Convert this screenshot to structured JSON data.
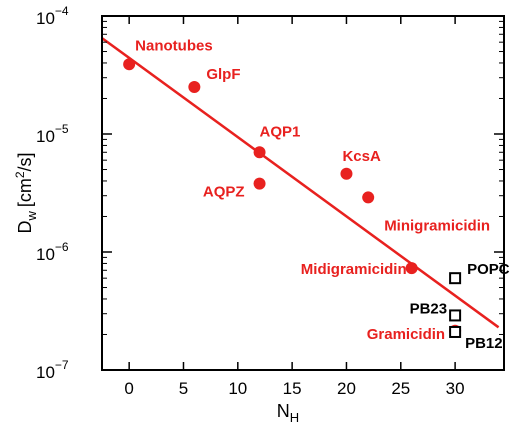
{
  "chart_data": {
    "type": "scatter",
    "xlabel": "N",
    "xlabel_sub": "H",
    "ylabel": "D",
    "ylabel_sub": "w",
    "ylabel_units": "[cm",
    "ylabel_units_sup": "2",
    "ylabel_units_tail": "/s]",
    "xlim": [
      -2.5,
      34.5
    ],
    "ylim": [
      1e-07,
      0.0001
    ],
    "yscale": "log",
    "grid": false,
    "x_ticks": [
      0,
      5,
      10,
      15,
      20,
      25,
      30
    ],
    "x_tick_labels": [
      "0",
      "5",
      "10",
      "15",
      "20",
      "25",
      "30"
    ],
    "y_ticks": [
      {
        "value": 0.0001,
        "base": "10",
        "exp": "−4"
      },
      {
        "value": 1e-05,
        "base": "10",
        "exp": "−5"
      },
      {
        "value": 1e-06,
        "base": "10",
        "exp": "−6"
      },
      {
        "value": 1e-07,
        "base": "10",
        "exp": "−7"
      }
    ],
    "colors": {
      "red": "#e8211f",
      "black": "#000000"
    },
    "fit_line": {
      "color": "#e8211f",
      "points": [
        [
          -2.5,
          6.5e-05
        ],
        [
          34,
          2.3e-07
        ]
      ]
    },
    "series": [
      {
        "marker": "filled-circle",
        "color": "#e8211f",
        "points": [
          {
            "label": "Nanotubes",
            "x": 0,
            "y": 3.9e-05
          },
          {
            "label": "GlpF",
            "x": 6,
            "y": 2.5e-05
          },
          {
            "label": "AQP1",
            "x": 12,
            "y": 7e-06
          },
          {
            "label": "AQPZ",
            "x": 12,
            "y": 3.8e-06
          },
          {
            "label": "KcsA",
            "x": 20,
            "y": 4.6e-06
          },
          {
            "label": "Minigramicidin",
            "x": 22,
            "y": 2.9e-06
          },
          {
            "label": "Midigramicidin",
            "x": 26,
            "y": 7.3e-07
          },
          {
            "label": "Gramicidin",
            "x": 30,
            "y": 2.15e-07
          }
        ]
      },
      {
        "marker": "open-square",
        "color": "#000000",
        "points": [
          {
            "label": "POPC",
            "x": 30,
            "y": 6e-07
          },
          {
            "label": "PB23",
            "x": 30,
            "y": 2.9e-07
          },
          {
            "label": "PB12",
            "x": 30,
            "y": 2.1e-07
          }
        ]
      }
    ]
  }
}
